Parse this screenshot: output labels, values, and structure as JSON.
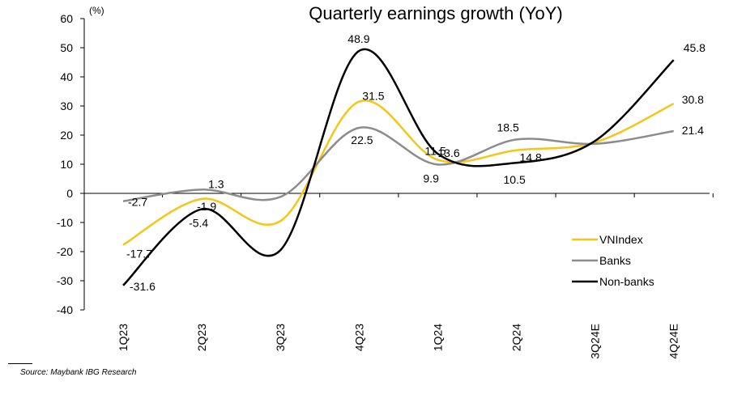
{
  "chart_data": {
    "type": "line",
    "title": "Quarterly earnings growth (YoY)",
    "unit_label": "(%)",
    "xlabel": "",
    "ylabel": "",
    "categories": [
      "1Q23",
      "2Q23",
      "3Q23",
      "4Q23",
      "1Q24",
      "2Q24",
      "3Q24E",
      "4Q24E"
    ],
    "ylim": [
      -40,
      60
    ],
    "yticks": [
      60,
      50,
      40,
      30,
      20,
      10,
      0,
      -10,
      -20,
      -30,
      -40
    ],
    "grid": false,
    "legend_position": "lower-right",
    "series": [
      {
        "name": "VNIndex",
        "color": "#F5C518",
        "values": [
          -17.7,
          -1.9,
          -9.5,
          31.5,
          11.5,
          14.8,
          17.5,
          30.8
        ],
        "labels": [
          "-17.7",
          "-1.9",
          "",
          "31.5",
          "11.5",
          "14.8",
          "",
          "30.8"
        ]
      },
      {
        "name": "Banks",
        "color": "#8C8C8C",
        "values": [
          -2.7,
          1.3,
          -1.2,
          22.5,
          9.9,
          18.5,
          17.0,
          21.4
        ],
        "labels": [
          "-2.7",
          "1.3",
          "",
          "22.5",
          "9.9",
          "18.5",
          "",
          "21.4"
        ]
      },
      {
        "name": "Non-banks",
        "color": "#000000",
        "values": [
          -31.6,
          -5.4,
          -19.5,
          48.9,
          13.6,
          10.5,
          18.0,
          45.8
        ],
        "labels": [
          "-31.6",
          "-5.4",
          "",
          "48.9",
          "13.6",
          "10.5",
          "",
          "45.8"
        ]
      }
    ]
  },
  "footer": {
    "source": "Source: Maybank IBG Research"
  }
}
